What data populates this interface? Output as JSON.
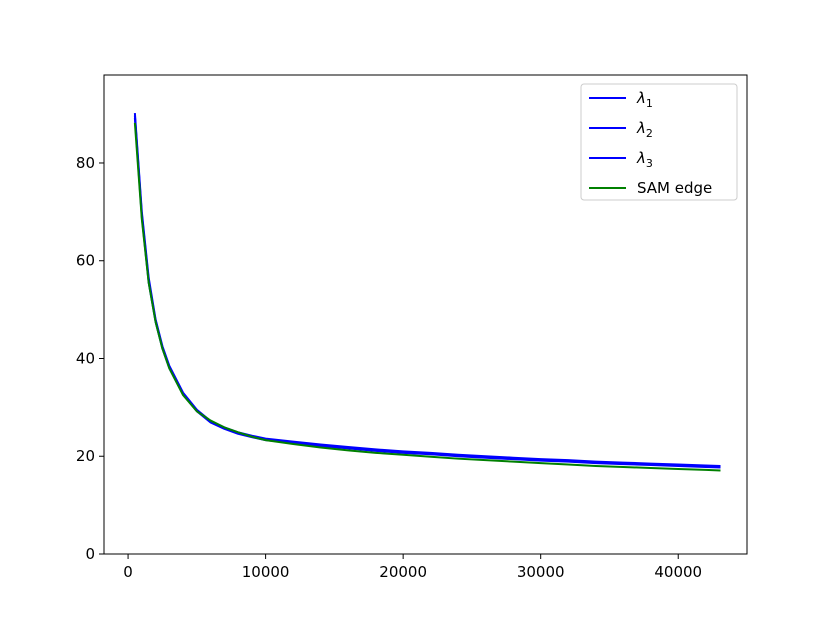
{
  "chart_data": {
    "type": "line",
    "title": "",
    "xlabel": "",
    "ylabel": "",
    "xlim": [
      -1750,
      45000
    ],
    "ylim": [
      0,
      98
    ],
    "xticks": [
      0,
      10000,
      20000,
      30000,
      40000
    ],
    "xtick_labels": [
      "0",
      "10000",
      "20000",
      "30000",
      "40000"
    ],
    "yticks": [
      0,
      20,
      40,
      60,
      80
    ],
    "ytick_labels": [
      "0",
      "20",
      "40",
      "60",
      "80"
    ],
    "grid": false,
    "legend_position": "top-right",
    "x": [
      500,
      1000,
      1500,
      2000,
      2500,
      3000,
      4000,
      5000,
      6000,
      7000,
      8000,
      9000,
      10000,
      12000,
      14000,
      16000,
      18000,
      20000,
      22000,
      24000,
      26000,
      28000,
      30000,
      32000,
      34000,
      36000,
      38000,
      40000,
      42000,
      43000
    ],
    "series": [
      {
        "name": "λ1",
        "label_base": "λ",
        "label_sub": "1",
        "color": "#0000ff",
        "values": [
          90.0,
          70.0,
          56.5,
          48.0,
          42.5,
          38.5,
          33.0,
          29.5,
          27.2,
          25.9,
          24.9,
          24.2,
          23.6,
          23.0,
          22.4,
          21.9,
          21.4,
          21.0,
          20.7,
          20.3,
          20.0,
          19.7,
          19.4,
          19.2,
          18.9,
          18.7,
          18.5,
          18.3,
          18.1,
          18.0
        ]
      },
      {
        "name": "λ2",
        "label_base": "λ",
        "label_sub": "2",
        "color": "#0000ff",
        "values": [
          89.5,
          69.5,
          56.0,
          47.8,
          42.2,
          38.3,
          32.8,
          29.3,
          27.0,
          25.7,
          24.7,
          24.0,
          23.4,
          22.8,
          22.2,
          21.7,
          21.2,
          20.8,
          20.5,
          20.1,
          19.8,
          19.5,
          19.2,
          19.0,
          18.7,
          18.5,
          18.3,
          18.1,
          17.9,
          17.8
        ]
      },
      {
        "name": "λ3",
        "label_base": "λ",
        "label_sub": "3",
        "color": "#0000ff",
        "values": [
          89.0,
          69.0,
          55.5,
          47.5,
          42.0,
          38.0,
          32.6,
          29.2,
          26.9,
          25.6,
          24.6,
          23.9,
          23.3,
          22.7,
          22.1,
          21.6,
          21.1,
          20.7,
          20.4,
          20.0,
          19.7,
          19.4,
          19.1,
          18.9,
          18.6,
          18.4,
          18.2,
          18.0,
          17.8,
          17.7
        ]
      },
      {
        "name": "SAM edge",
        "label_base": "SAM edge",
        "label_sub": "",
        "color": "#008000",
        "values": [
          88.0,
          68.5,
          55.5,
          47.5,
          42.0,
          38.0,
          32.5,
          29.2,
          27.3,
          25.9,
          24.9,
          24.0,
          23.3,
          22.5,
          21.8,
          21.2,
          20.7,
          20.3,
          19.9,
          19.5,
          19.2,
          18.9,
          18.6,
          18.3,
          18.0,
          17.8,
          17.6,
          17.4,
          17.2,
          17.1
        ]
      }
    ]
  }
}
